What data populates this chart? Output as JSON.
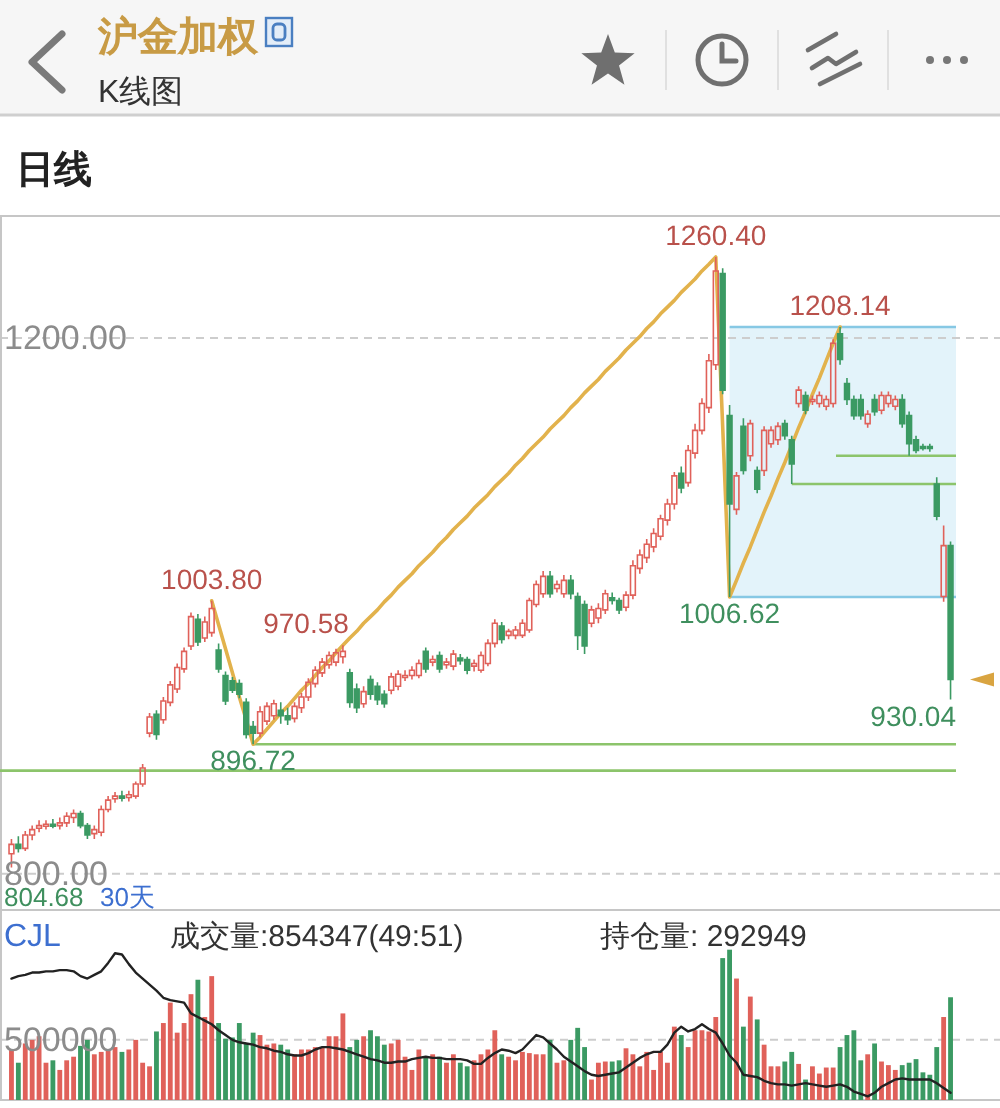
{
  "chart_data": [
    {
      "type": "candlestick",
      "title": "沪金加权",
      "subtitle": "K线图",
      "categories": [
        null,
        null,
        null,
        null,
        null,
        null,
        null,
        null,
        null,
        null,
        null,
        null,
        null,
        null,
        null,
        null,
        null,
        null,
        null,
        null,
        null,
        null,
        null,
        null,
        null,
        null,
        null,
        null,
        null,
        null,
        null,
        null,
        null,
        null,
        null,
        null,
        null,
        null,
        null,
        null,
        null,
        null,
        null,
        null,
        null,
        null,
        null,
        null,
        null,
        null,
        null,
        null,
        null,
        null,
        null,
        null,
        null,
        null,
        null,
        null,
        null,
        null,
        null,
        null,
        null,
        null,
        null,
        null,
        null,
        null,
        null,
        null,
        null,
        null,
        null,
        null,
        null,
        null,
        null,
        null,
        null,
        null,
        null,
        null,
        null,
        null,
        null,
        null,
        null,
        null,
        null,
        null,
        null,
        null,
        null,
        null,
        null,
        null,
        null,
        null,
        null,
        null,
        null,
        null,
        null,
        null,
        null,
        null,
        null,
        null,
        null,
        null,
        null,
        null,
        null,
        null,
        null,
        null,
        null,
        null,
        null,
        null,
        null,
        null,
        null,
        null,
        null,
        null,
        null,
        null,
        null,
        null,
        null,
        null,
        null,
        null,
        null
      ],
      "ohlc": [
        [
          815,
          826,
          804.68,
          822
        ],
        [
          822,
          828,
          816,
          819
        ],
        [
          819,
          832,
          817,
          829
        ],
        [
          829,
          836,
          825,
          833
        ],
        [
          834,
          840,
          831,
          836
        ],
        [
          836,
          840,
          833,
          837
        ],
        [
          837,
          841,
          834,
          836
        ],
        [
          836,
          842,
          833,
          838
        ],
        [
          838,
          846,
          835,
          843
        ],
        [
          842,
          848,
          838,
          845
        ],
        [
          845,
          847,
          834,
          836
        ],
        [
          836,
          838,
          826,
          829
        ],
        [
          830,
          836,
          826,
          833
        ],
        [
          831,
          851,
          828,
          848
        ],
        [
          848,
          858,
          846,
          855
        ],
        [
          856,
          861,
          853,
          858
        ],
        [
          858,
          862,
          854,
          857
        ],
        [
          857,
          862,
          854,
          859
        ],
        [
          858,
          869,
          856,
          867
        ],
        [
          867,
          882,
          865,
          879
        ],
        [
          905,
          920,
          902,
          917
        ],
        [
          919,
          922,
          900,
          904
        ],
        [
          915,
          932,
          912,
          929
        ],
        [
          928,
          944,
          925,
          941
        ],
        [
          938,
          957,
          935,
          954
        ],
        [
          953,
          969,
          950,
          966
        ],
        [
          970,
          995,
          967,
          992
        ],
        [
          990,
          994,
          970,
          973
        ],
        [
          976,
          992,
          973,
          988
        ],
        [
          980,
          1003.8,
          977,
          998
        ],
        [
          967,
          972,
          950,
          953
        ],
        [
          948,
          951,
          926,
          929
        ],
        [
          944,
          947,
          935,
          937
        ],
        [
          942,
          945,
          931,
          934
        ],
        [
          928,
          931,
          901,
          904
        ],
        [
          910,
          914,
          896.72,
          905
        ],
        [
          905,
          925,
          902,
          921
        ],
        [
          914,
          928,
          911,
          925
        ],
        [
          918,
          930,
          915,
          927
        ],
        [
          922,
          928,
          912,
          918
        ],
        [
          918,
          924,
          911,
          915
        ],
        [
          916,
          928,
          913,
          925
        ],
        [
          924,
          935,
          920,
          932
        ],
        [
          932,
          946,
          929,
          943
        ],
        [
          942,
          955,
          939,
          952
        ],
        [
          950,
          961,
          947,
          958
        ],
        [
          956,
          966,
          953,
          963
        ],
        [
          958,
          968,
          955,
          965
        ],
        [
          962,
          970.58,
          957,
          966
        ],
        [
          950,
          953,
          924,
          928
        ],
        [
          938,
          942,
          920,
          924
        ],
        [
          927,
          940,
          924,
          936
        ],
        [
          945,
          948,
          930,
          934
        ],
        [
          940,
          943,
          926,
          930
        ],
        [
          934,
          937,
          924,
          927
        ],
        [
          937,
          950,
          934,
          947
        ],
        [
          940,
          952,
          937,
          949
        ],
        [
          947,
          952,
          944,
          948
        ],
        [
          948,
          955,
          945,
          952
        ],
        [
          948,
          960,
          946,
          957
        ],
        [
          966,
          969,
          950,
          953
        ],
        [
          958,
          963,
          955,
          960
        ],
        [
          963,
          966,
          950,
          953
        ],
        [
          956,
          961,
          953,
          958
        ],
        [
          955,
          967,
          952,
          964
        ],
        [
          961,
          964,
          956,
          959
        ],
        [
          960,
          962,
          949,
          952
        ],
        [
          955,
          960,
          951,
          957
        ],
        [
          952,
          966,
          950,
          963
        ],
        [
          957,
          975,
          955,
          972
        ],
        [
          972,
          990,
          969,
          987
        ],
        [
          985,
          988,
          972,
          975
        ],
        [
          978,
          983,
          975,
          981
        ],
        [
          978,
          985,
          975,
          982
        ],
        [
          978,
          990,
          976,
          987
        ],
        [
          982,
          1006,
          980,
          1004
        ],
        [
          1001,
          1019,
          999,
          1016
        ],
        [
          1009,
          1026,
          1006,
          1022
        ],
        [
          1022,
          1026,
          1006,
          1009
        ],
        [
          1013,
          1019,
          1010,
          1016
        ],
        [
          1009,
          1023,
          1006,
          1019
        ],
        [
          1019,
          1023,
          1005,
          1009
        ],
        [
          1007,
          1010,
          967,
          978
        ],
        [
          1001,
          1004,
          964,
          970
        ],
        [
          987,
          1000,
          984,
          997
        ],
        [
          991,
          1002,
          987,
          998
        ],
        [
          997,
          1012,
          994,
          1009
        ],
        [
          1006,
          1010,
          1001,
          1004
        ],
        [
          1004,
          1006,
          994,
          997
        ],
        [
          999,
          1011,
          996,
          1008
        ],
        [
          1008,
          1034,
          1005,
          1030
        ],
        [
          1028,
          1042,
          1024,
          1038
        ],
        [
          1036,
          1050,
          1032,
          1046
        ],
        [
          1044,
          1058,
          1040,
          1054
        ],
        [
          1052,
          1068,
          1049,
          1065
        ],
        [
          1064,
          1080,
          1060,
          1076
        ],
        [
          1076,
          1100,
          1072,
          1097
        ],
        [
          1099,
          1104,
          1084,
          1088
        ],
        [
          1092,
          1120,
          1089,
          1116
        ],
        [
          1114,
          1136,
          1110,
          1131
        ],
        [
          1131,
          1155,
          1128,
          1151
        ],
        [
          1148,
          1188,
          1144,
          1183
        ],
        [
          1180,
          1260.4,
          1176,
          1250
        ],
        [
          1248,
          1252,
          1158,
          1161
        ],
        [
          1142,
          1150,
          1006.62,
          1076
        ],
        [
          1072,
          1100,
          1068,
          1097
        ],
        [
          1134,
          1140,
          1098,
          1101
        ],
        [
          1112,
          1139,
          1108,
          1136
        ],
        [
          1101,
          1104,
          1084,
          1087
        ],
        [
          1101,
          1134,
          1097,
          1131
        ],
        [
          1121,
          1134,
          1118,
          1131
        ],
        [
          1124,
          1137,
          1120,
          1134
        ],
        [
          1136,
          1139,
          1124,
          1127
        ],
        [
          1124,
          1127,
          1091,
          1106
        ],
        [
          1151,
          1164,
          1148,
          1161
        ],
        [
          1157,
          1160,
          1143,
          1146
        ],
        [
          1153,
          1157,
          1150,
          1154
        ],
        [
          1151,
          1160,
          1148,
          1157
        ],
        [
          1149,
          1157,
          1146,
          1154
        ],
        [
          1151,
          1199,
          1148,
          1196
        ],
        [
          1203,
          1208.14,
          1180,
          1184
        ],
        [
          1166,
          1170,
          1150,
          1154
        ],
        [
          1154,
          1157,
          1139,
          1142
        ],
        [
          1154,
          1158,
          1139,
          1142
        ],
        [
          1136,
          1146,
          1133,
          1143
        ],
        [
          1154,
          1158,
          1142,
          1145
        ],
        [
          1146,
          1160,
          1143,
          1157
        ],
        [
          1151,
          1160,
          1148,
          1157
        ],
        [
          1149,
          1157,
          1146,
          1154
        ],
        [
          1154,
          1158,
          1133,
          1136
        ],
        [
          1142,
          1145,
          1112,
          1121
        ],
        [
          1124,
          1127,
          1114,
          1116
        ],
        [
          1119,
          1121,
          1116,
          1118
        ],
        [
          1119,
          1121,
          1115,
          1118
        ],
        [
          1091,
          1096,
          1064,
          1067
        ],
        [
          1007,
          1060,
          1003,
          1045
        ],
        [
          1045,
          1048,
          930.04,
          945
        ]
      ],
      "series": [
        {
          "type": "line",
          "color": "#e2b24c",
          "values": [
            null,
            null,
            null,
            null,
            null,
            null,
            null,
            null,
            null,
            null,
            null,
            null,
            null,
            null,
            null,
            null,
            null,
            null,
            null,
            null,
            null,
            null,
            null,
            null,
            null,
            null,
            null,
            null,
            null,
            1003.8,
            986,
            968,
            950,
            932,
            915,
            896.72,
            902,
            908,
            914,
            920,
            925,
            931,
            937,
            942,
            948,
            954,
            959,
            965,
            970.58,
            976,
            981,
            987,
            992,
            997,
            1003,
            1008,
            1014,
            1019,
            1024,
            1030,
            1035,
            1040,
            1046,
            1051,
            1057,
            1062,
            1067,
            1073,
            1078,
            1083,
            1089,
            1094,
            1099,
            1105,
            1110,
            1116,
            1121,
            1126,
            1132,
            1137,
            1142,
            1148,
            1153,
            1159,
            1164,
            1169,
            1175,
            1180,
            1185,
            1191,
            1196,
            1201,
            1207,
            1212,
            1218,
            1223,
            1228,
            1234,
            1239,
            1244,
            1250,
            1255,
            1260.4,
            1134,
            1006.62,
            1019,
            1032,
            1044,
            1057,
            1070,
            1082,
            1095,
            1107,
            1120,
            1133,
            1145,
            1158,
            1170,
            1183,
            1196,
            1208.14,
            null,
            null,
            null,
            null,
            null,
            null,
            null,
            null,
            null,
            null,
            null,
            null,
            null,
            null,
            null,
            null
          ],
          "value_labels": [
            null,
            null,
            null,
            null,
            null,
            null,
            null,
            null,
            null,
            null,
            null,
            null,
            null,
            null,
            null,
            null,
            null,
            null,
            null,
            null,
            null,
            null,
            null,
            null,
            null,
            null,
            null,
            null,
            null,
            "1003.80",
            null,
            null,
            null,
            null,
            null,
            "896.72",
            null,
            null,
            null,
            null,
            null,
            null,
            null,
            null,
            null,
            null,
            null,
            null,
            "970.58",
            null,
            null,
            null,
            null,
            null,
            null,
            null,
            null,
            null,
            null,
            null,
            null,
            null,
            null,
            null,
            null,
            null,
            null,
            null,
            null,
            null,
            null,
            null,
            null,
            null,
            null,
            null,
            null,
            null,
            null,
            null,
            null,
            null,
            null,
            null,
            null,
            null,
            null,
            null,
            null,
            null,
            null,
            null,
            null,
            null,
            null,
            null,
            null,
            null,
            null,
            null,
            null,
            null,
            "1260.40",
            null,
            "1006.62",
            null,
            null,
            null,
            null,
            null,
            null,
            null,
            null,
            null,
            null,
            null,
            null,
            null,
            null,
            null,
            "1208.14",
            null,
            null,
            null,
            null,
            null,
            null,
            null,
            null,
            null,
            null,
            null,
            null,
            null,
            null,
            null,
            null
          ]
        }
      ],
      "ylim": [
        773,
        1291
      ],
      "yticks": [
        {
          "value": 800,
          "label": "800.00"
        },
        {
          "value": 1200,
          "label": "1200.00"
        }
      ],
      "grid": "y",
      "tick_labels": "y",
      "ref_lines": [
        {
          "axis": "y",
          "value": 896.72,
          "color": "#8cc46b"
        },
        {
          "axis": "y",
          "value": 877,
          "color": "#8cc46b"
        },
        {
          "axis": "y",
          "value": 1091,
          "color": "#8cc46b"
        },
        {
          "axis": "y",
          "value": 1112,
          "color": "#8cc46b"
        }
      ],
      "bands": [
        {
          "axis": "y",
          "from": 1006.62,
          "to": 1208.14,
          "color": "#e3f3fa"
        }
      ],
      "annotations": [
        "日线",
        "30天",
        "804.68",
        "930.04"
      ]
    },
    {
      "type": "bar",
      "title": "CJL",
      "categories": [
        null,
        null,
        null,
        null,
        null,
        null,
        null,
        null,
        null,
        null,
        null,
        null,
        null,
        null,
        null,
        null,
        null,
        null,
        null,
        null,
        null,
        null,
        null,
        null,
        null,
        null,
        null,
        null,
        null,
        null,
        null,
        null,
        null,
        null,
        null,
        null,
        null,
        null,
        null,
        null,
        null,
        null,
        null,
        null,
        null,
        null,
        null,
        null,
        null,
        null,
        null,
        null,
        null,
        null,
        null,
        null,
        null,
        null,
        null,
        null,
        null,
        null,
        null,
        null,
        null,
        null,
        null,
        null,
        null,
        null,
        null,
        null,
        null,
        null,
        null,
        null,
        null,
        null,
        null,
        null,
        null,
        null,
        null,
        null,
        null,
        null,
        null,
        null,
        null,
        null,
        null,
        null,
        null,
        null,
        null,
        null,
        null,
        null,
        null,
        null,
        null,
        null,
        null,
        null,
        null,
        null,
        null,
        null,
        null,
        null,
        null,
        null,
        null,
        null,
        null,
        null,
        null,
        null,
        null,
        null,
        null,
        null,
        null,
        null,
        null,
        null,
        null,
        null,
        null,
        null,
        null,
        null,
        null,
        null,
        null,
        null,
        null
      ],
      "series": [
        {
          "type": "bar",
          "colors": [
            "#e0615a",
            "#3b9a63",
            "#e0615a",
            "#e0615a",
            "#e0615a",
            "#e0615a",
            "#3b9a63",
            "#e0615a",
            "#e0615a",
            "#e0615a",
            "#3b9a63",
            "#3b9a63",
            "#e0615a",
            "#e0615a",
            "#e0615a",
            "#e0615a",
            "#3b9a63",
            "#e0615a",
            "#e0615a",
            "#e0615a",
            "#e0615a",
            "#3b9a63",
            "#e0615a",
            "#e0615a",
            "#e0615a",
            "#e0615a",
            "#e0615a",
            "#3b9a63",
            "#e0615a",
            "#e0615a",
            "#3b9a63",
            "#3b9a63",
            "#3b9a63",
            "#3b9a63",
            "#3b9a63",
            "#3b9a63",
            "#e0615a",
            "#e0615a",
            "#e0615a",
            "#3b9a63",
            "#3b9a63",
            "#e0615a",
            "#e0615a",
            "#e0615a",
            "#e0615a",
            "#e0615a",
            "#e0615a",
            "#e0615a",
            "#e0615a",
            "#3b9a63",
            "#3b9a63",
            "#e0615a",
            "#3b9a63",
            "#3b9a63",
            "#3b9a63",
            "#e0615a",
            "#e0615a",
            "#e0615a",
            "#e0615a",
            "#e0615a",
            "#3b9a63",
            "#e0615a",
            "#3b9a63",
            "#e0615a",
            "#e0615a",
            "#3b9a63",
            "#3b9a63",
            "#e0615a",
            "#e0615a",
            "#e0615a",
            "#e0615a",
            "#3b9a63",
            "#e0615a",
            "#e0615a",
            "#e0615a",
            "#e0615a",
            "#e0615a",
            "#e0615a",
            "#3b9a63",
            "#e0615a",
            "#e0615a",
            "#3b9a63",
            "#3b9a63",
            "#3b9a63",
            "#e0615a",
            "#e0615a",
            "#e0615a",
            "#3b9a63",
            "#3b9a63",
            "#e0615a",
            "#e0615a",
            "#e0615a",
            "#e0615a",
            "#e0615a",
            "#e0615a",
            "#e0615a",
            "#e0615a",
            "#3b9a63",
            "#e0615a",
            "#e0615a",
            "#e0615a",
            "#e0615a",
            "#e0615a",
            "#3b9a63",
            "#3b9a63",
            "#e0615a",
            "#3b9a63",
            "#e0615a",
            "#3b9a63",
            "#e0615a",
            "#e0615a",
            "#e0615a",
            "#3b9a63",
            "#3b9a63",
            "#e0615a",
            "#3b9a63",
            "#e0615a",
            "#e0615a",
            "#e0615a",
            "#e0615a",
            "#3b9a63",
            "#3b9a63",
            "#3b9a63",
            "#3b9a63",
            "#e0615a",
            "#3b9a63",
            "#e0615a",
            "#e0615a",
            "#e0615a",
            "#3b9a63",
            "#3b9a63",
            "#3b9a63",
            "#3b9a63",
            "#3b9a63",
            "#3b9a63",
            "#e0615a",
            "#3b9a63"
          ],
          "values": [
            420000,
            310000,
            470000,
            500000,
            530000,
            310000,
            330000,
            250000,
            330000,
            360000,
            450000,
            500000,
            380000,
            400000,
            420000,
            440000,
            400000,
            420000,
            500000,
            310000,
            280000,
            570000,
            640000,
            810000,
            560000,
            640000,
            880000,
            1000000,
            690000,
            1030000,
            640000,
            510000,
            520000,
            640000,
            470000,
            560000,
            540000,
            460000,
            470000,
            460000,
            420000,
            380000,
            420000,
            420000,
            440000,
            440000,
            530000,
            530000,
            720000,
            440000,
            500000,
            530000,
            580000,
            530000,
            460000,
            470000,
            500000,
            360000,
            250000,
            420000,
            360000,
            380000,
            360000,
            310000,
            380000,
            310000,
            280000,
            330000,
            380000,
            420000,
            580000,
            380000,
            360000,
            330000,
            400000,
            390000,
            380000,
            380000,
            500000,
            310000,
            330000,
            500000,
            600000,
            440000,
            170000,
            310000,
            320000,
            320000,
            330000,
            430000,
            380000,
            280000,
            400000,
            250000,
            400000,
            310000,
            610000,
            540000,
            440000,
            580000,
            580000,
            570000,
            690000,
            1180000,
            1250000,
            1010000,
            610000,
            860000,
            670000,
            460000,
            280000,
            280000,
            320000,
            400000,
            300000,
            170000,
            280000,
            220000,
            270000,
            270000,
            440000,
            540000,
            580000,
            330000,
            380000,
            470000,
            320000,
            290000,
            250000,
            290000,
            310000,
            340000,
            230000,
            210000,
            440000,
            690000,
            854347
          ]
        },
        {
          "type": "line",
          "color": "#222222",
          "values": [
            1010000,
            1030000,
            1040000,
            1060000,
            1060000,
            1070000,
            1070000,
            1080000,
            1080000,
            1070000,
            1030000,
            1010000,
            1040000,
            1070000,
            1140000,
            1220000,
            1210000,
            1130000,
            1060000,
            1010000,
            960000,
            910000,
            850000,
            830000,
            820000,
            810000,
            720000,
            690000,
            660000,
            630000,
            580000,
            540000,
            500000,
            480000,
            470000,
            460000,
            440000,
            430000,
            410000,
            400000,
            380000,
            370000,
            370000,
            390000,
            420000,
            440000,
            440000,
            430000,
            420000,
            400000,
            380000,
            360000,
            340000,
            330000,
            310000,
            310000,
            320000,
            320000,
            340000,
            350000,
            360000,
            350000,
            350000,
            340000,
            340000,
            340000,
            330000,
            300000,
            300000,
            350000,
            390000,
            420000,
            410000,
            390000,
            420000,
            480000,
            540000,
            520000,
            470000,
            420000,
            360000,
            320000,
            280000,
            240000,
            210000,
            200000,
            210000,
            220000,
            230000,
            270000,
            310000,
            350000,
            380000,
            400000,
            400000,
            460000,
            560000,
            610000,
            570000,
            590000,
            630000,
            590000,
            560000,
            470000,
            370000,
            310000,
            210000,
            200000,
            190000,
            160000,
            140000,
            130000,
            130000,
            120000,
            130000,
            140000,
            130000,
            120000,
            110000,
            120000,
            130000,
            110000,
            70000,
            50000,
            30000,
            60000,
            110000,
            140000,
            170000,
            180000,
            170000,
            170000,
            170000,
            170000,
            140000,
            100000,
            60000
          ]
        }
      ],
      "ylim": [
        0,
        1580000
      ],
      "yticks": [
        500000
      ],
      "grid": "y",
      "tick_labels": "y",
      "annotations": [
        "成交量:854347(49:51)",
        "持仓量: 292949"
      ]
    }
  ]
}
